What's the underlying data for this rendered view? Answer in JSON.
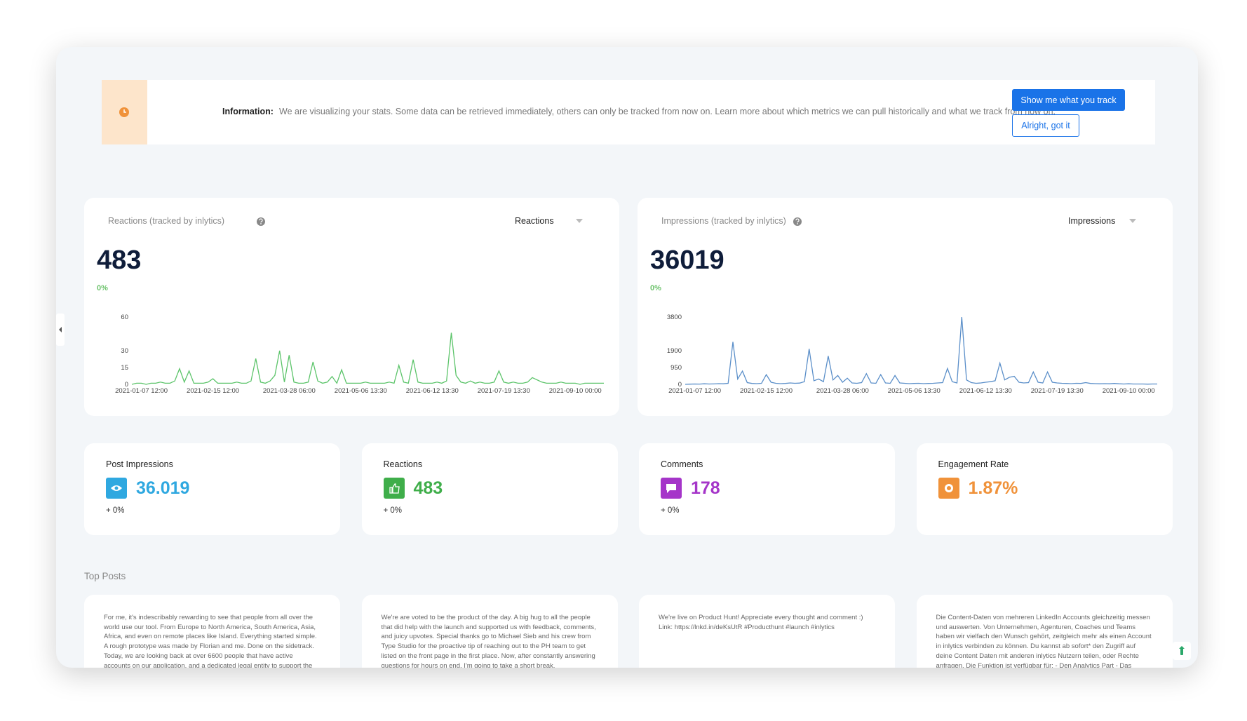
{
  "banner": {
    "label": "Information:",
    "text": "We are visualizing your stats. Some data can be retrieved immediately, others can only be tracked from now on. Learn more about which metrics we can pull historically and what we track from now on.",
    "primary_button": "Show me what you track",
    "secondary_button": "Alright, got it"
  },
  "chart_data": [
    {
      "type": "line",
      "title": "Reactions (tracked by inlytics)",
      "selector": "Reactions",
      "total": "483",
      "change": "0%",
      "color": "#5cc46a",
      "categories": [
        null,
        null,
        "2021-01-07 12:00",
        null,
        null,
        null,
        null,
        null,
        null,
        null,
        null,
        null,
        null,
        null,
        null,
        null,
        null,
        "2021-02-15 12:00",
        null,
        null,
        null,
        null,
        null,
        null,
        null,
        null,
        null,
        null,
        null,
        null,
        null,
        null,
        null,
        "2021-03-28 06:00",
        null,
        null,
        null,
        null,
        null,
        null,
        null,
        null,
        null,
        null,
        null,
        null,
        null,
        null,
        "2021-05-06 13:30",
        null,
        null,
        null,
        null,
        null,
        null,
        null,
        null,
        null,
        null,
        null,
        null,
        null,
        null,
        "2021-06-12 13:30",
        null,
        null,
        null,
        null,
        null,
        null,
        null,
        null,
        null,
        null,
        null,
        null,
        null,
        null,
        "2021-07-19 13:30",
        null,
        null,
        null,
        null,
        null,
        null,
        null,
        null,
        null,
        null,
        null,
        null,
        null,
        null,
        "2021-09-10 00:00",
        null,
        null,
        null,
        null,
        null,
        null
      ],
      "values": [
        0,
        1,
        1,
        0,
        1,
        1,
        2,
        1,
        1,
        3,
        14,
        2,
        12,
        1,
        1,
        1,
        2,
        5,
        1,
        1,
        1,
        1,
        2,
        1,
        1,
        3,
        23,
        2,
        1,
        3,
        8,
        30,
        2,
        26,
        2,
        1,
        1,
        2,
        20,
        3,
        1,
        2,
        7,
        1,
        13,
        1,
        1,
        1,
        1,
        2,
        1,
        1,
        1,
        1,
        2,
        1,
        17,
        2,
        1,
        22,
        2,
        1,
        1,
        1,
        2,
        1,
        3,
        46,
        8,
        2,
        1,
        3,
        1,
        2,
        1,
        1,
        2,
        12,
        2,
        1,
        2,
        1,
        1,
        2,
        6,
        4,
        2,
        1,
        1,
        1,
        2,
        1,
        1,
        1,
        0,
        1,
        1,
        1,
        1,
        1
      ],
      "ylim": [
        0,
        60
      ],
      "yticks": [
        0,
        15,
        30,
        60
      ]
    },
    {
      "type": "line",
      "title": "Impressions (tracked by inlytics)",
      "selector": "Impressions",
      "total": "36019",
      "change": "0%",
      "color": "#5b8fc9",
      "categories": [
        null,
        null,
        "2021-01-07 12:00",
        null,
        null,
        null,
        null,
        null,
        null,
        null,
        null,
        null,
        null,
        null,
        null,
        null,
        null,
        "2021-02-15 12:00",
        null,
        null,
        null,
        null,
        null,
        null,
        null,
        null,
        null,
        null,
        null,
        null,
        null,
        null,
        null,
        "2021-03-28 06:00",
        null,
        null,
        null,
        null,
        null,
        null,
        null,
        null,
        null,
        null,
        null,
        null,
        null,
        null,
        "2021-05-06 13:30",
        null,
        null,
        null,
        null,
        null,
        null,
        null,
        null,
        null,
        null,
        null,
        null,
        null,
        null,
        "2021-06-12 13:30",
        null,
        null,
        null,
        null,
        null,
        null,
        null,
        null,
        null,
        null,
        null,
        null,
        null,
        null,
        "2021-07-19 13:30",
        null,
        null,
        null,
        null,
        null,
        null,
        null,
        null,
        null,
        null,
        null,
        null,
        null,
        null,
        "2021-09-10 00:00",
        null,
        null,
        null,
        null,
        null,
        null
      ],
      "values": [
        0,
        10,
        20,
        15,
        30,
        20,
        25,
        40,
        30,
        60,
        2400,
        300,
        750,
        100,
        50,
        40,
        60,
        550,
        120,
        60,
        40,
        50,
        80,
        60,
        70,
        150,
        2000,
        200,
        300,
        150,
        1600,
        250,
        500,
        120,
        350,
        80,
        60,
        100,
        600,
        80,
        60,
        550,
        80,
        60,
        500,
        80,
        60,
        40,
        50,
        60,
        40,
        50,
        60,
        80,
        100,
        900,
        150,
        80,
        3800,
        250,
        100,
        60,
        80,
        120,
        150,
        200,
        1200,
        250,
        400,
        450,
        120,
        80,
        100,
        700,
        120,
        80,
        700,
        120,
        80,
        60,
        50,
        40,
        60,
        50,
        100,
        50,
        40,
        30,
        40,
        30,
        50,
        30,
        20,
        30,
        20,
        20,
        20,
        10,
        20,
        20
      ],
      "ylim": [
        0,
        3800
      ],
      "yticks": [
        0,
        950,
        1900,
        3800
      ]
    }
  ],
  "stats": [
    {
      "label": "Post Impressions",
      "value": "36.019",
      "change": "+ 0%",
      "color": "#2fa8e0"
    },
    {
      "label": "Reactions",
      "value": "483",
      "change": "+ 0%",
      "color": "#3fae4a"
    },
    {
      "label": "Comments",
      "value": "178",
      "change": "+ 0%",
      "color": "#a535c9"
    },
    {
      "label": "Engagement Rate",
      "value": "1.87%",
      "color": "#f0923a"
    }
  ],
  "top_posts": {
    "title": "Top Posts",
    "posts": [
      "For me, it's indescribably rewarding to see that people from all over the world use our tool. From Europe to North America, South America, Asia, Africa, and even on remote places like Island. Everything started simple. A rough prototype was made by Florian and me. Done on the sidetrack. Today, we are looking back at over 6600 people that have active accounts on our application, and a dedicated legal entity to support the future...",
      "We're are voted to be the product of the day. A big hug to all the people that did help with the launch and supported us with feedback, comments, and juicy upvotes. Special thanks go to Michael Sieb and his crew from Type Studio for the proactive tip of reaching out to the PH team to get listed on the front page in the first place. Now, after constantly answering questions for hours on end, I'm going to take a short break.",
      "We're live on Product Hunt! Appreciate every thought and comment :) Link: https://lnkd.in/deKsUtR #Producthunt #launch #inlytics",
      "Die Content-Daten von mehreren LinkedIn Accounts gleichzeitig messen und auswerten. Von Unternehmen, Agenturen, Coaches und Teams haben wir vielfach den Wunsch gehört, zeitgleich mehr als einen Account in inlytics verbinden zu können. Du kannst ab sofort* den Zugriff auf deine Content Daten mit anderen inlytics Nutzern teilen, oder Rechte anfragen. Die Funktion ist verfügbar für: - Den Analytics Part - Das Content-..."
    ]
  }
}
